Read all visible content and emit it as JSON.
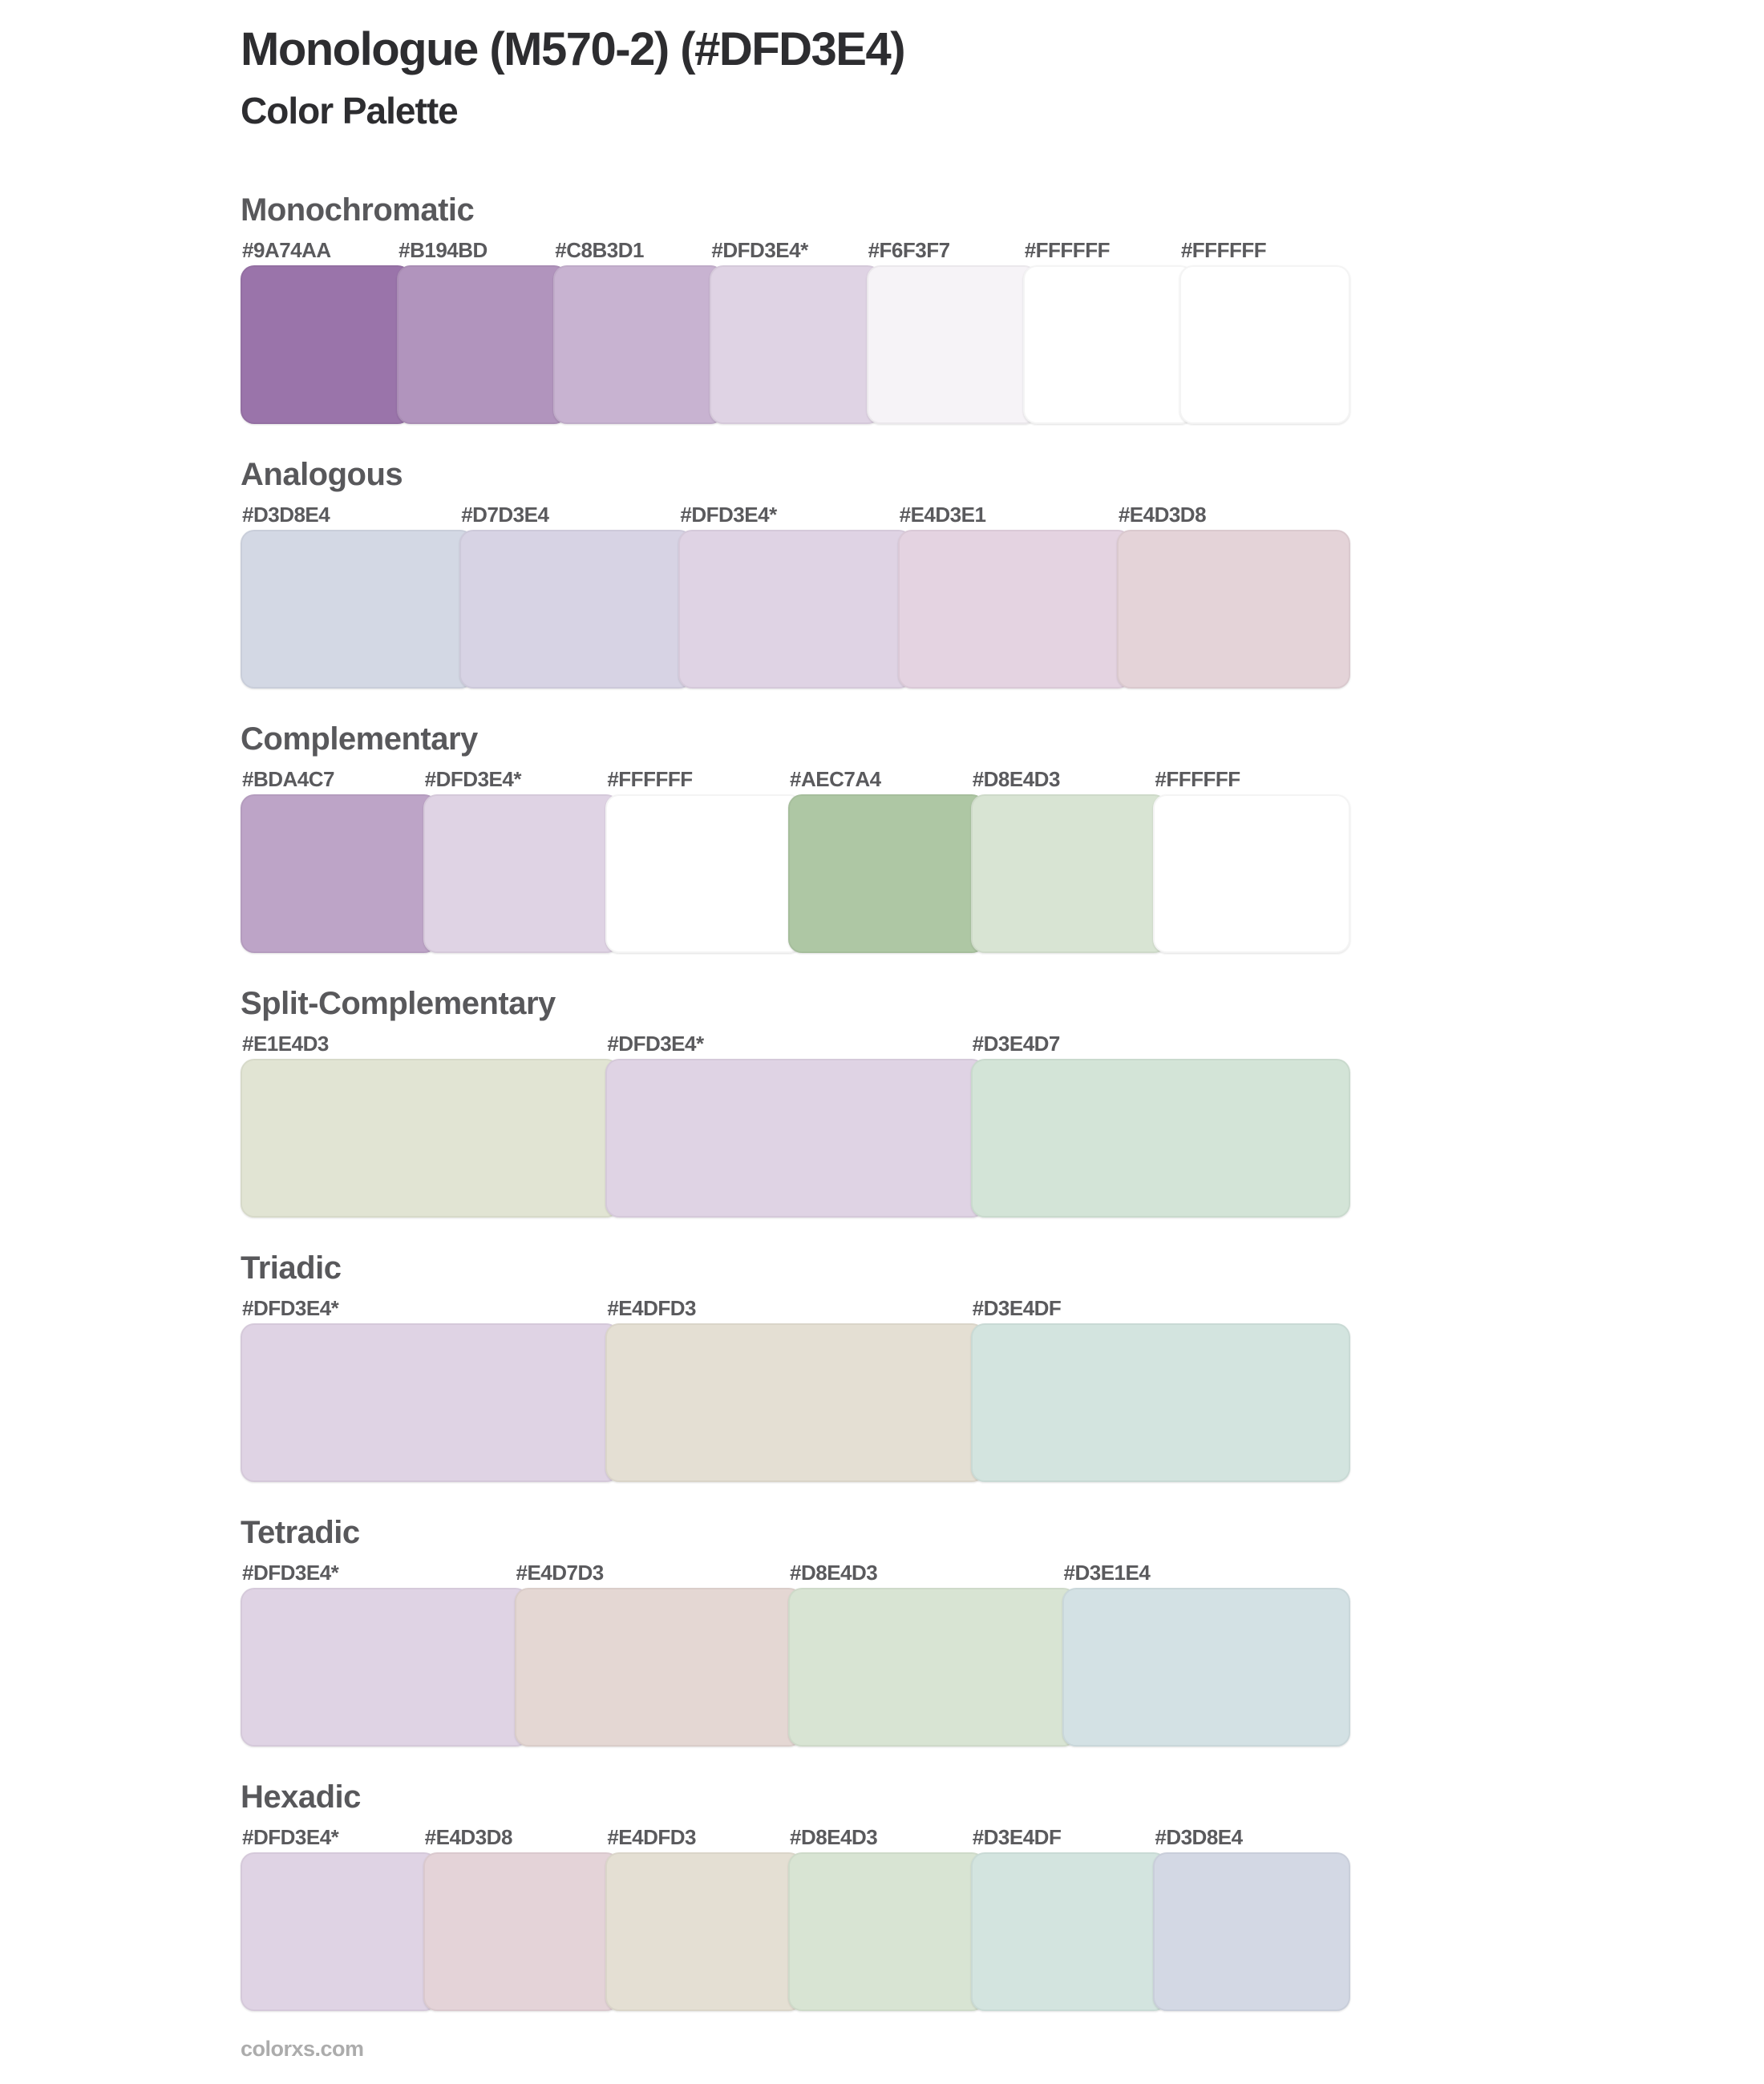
{
  "header": {
    "title": "Monologue (M570-2) (#DFD3E4)",
    "subtitle": "Color Palette",
    "base_color": "#DFD3E4"
  },
  "ui_colors": {
    "background": "#FFFFFF",
    "title_text": "#2D2D30",
    "heading_text": "#58585B",
    "label_text": "#5A5A5D",
    "footer_text": "#ACACAC"
  },
  "sections": [
    {
      "heading": "Monochromatic",
      "swatches": [
        {
          "label": "#9A74AA",
          "color": "#9A74AA"
        },
        {
          "label": "#B194BD",
          "color": "#B194BD"
        },
        {
          "label": "#C8B3D1",
          "color": "#C8B3D1"
        },
        {
          "label": "#DFD3E4*",
          "color": "#DFD3E4"
        },
        {
          "label": "#F6F3F7",
          "color": "#F6F3F7"
        },
        {
          "label": "#FFFFFF",
          "color": "#FFFFFF"
        },
        {
          "label": "#FFFFFF",
          "color": "#FFFFFF"
        }
      ]
    },
    {
      "heading": "Analogous",
      "swatches": [
        {
          "label": "#D3D8E4",
          "color": "#D3D8E4"
        },
        {
          "label": "#D7D3E4",
          "color": "#D7D3E4"
        },
        {
          "label": "#DFD3E4*",
          "color": "#DFD3E4"
        },
        {
          "label": "#E4D3E1",
          "color": "#E4D3E1"
        },
        {
          "label": "#E4D3D8",
          "color": "#E4D3D8"
        }
      ]
    },
    {
      "heading": "Complementary",
      "swatches": [
        {
          "label": "#BDA4C7",
          "color": "#BDA4C7"
        },
        {
          "label": "#DFD3E4*",
          "color": "#DFD3E4"
        },
        {
          "label": "#FFFFFF",
          "color": "#FFFFFF"
        },
        {
          "label": "#AEC7A4",
          "color": "#AEC7A4"
        },
        {
          "label": "#D8E4D3",
          "color": "#D8E4D3"
        },
        {
          "label": "#FFFFFF",
          "color": "#FFFFFF"
        }
      ]
    },
    {
      "heading": "Split-Complementary",
      "swatches": [
        {
          "label": "#E1E4D3",
          "color": "#E1E4D3"
        },
        {
          "label": "#DFD3E4*",
          "color": "#DFD3E4"
        },
        {
          "label": "#D3E4D7",
          "color": "#D3E4D7"
        }
      ]
    },
    {
      "heading": "Triadic",
      "swatches": [
        {
          "label": "#DFD3E4*",
          "color": "#DFD3E4"
        },
        {
          "label": "#E4DFD3",
          "color": "#E4DFD3"
        },
        {
          "label": "#D3E4DF",
          "color": "#D3E4DF"
        }
      ]
    },
    {
      "heading": "Tetradic",
      "swatches": [
        {
          "label": "#DFD3E4*",
          "color": "#DFD3E4"
        },
        {
          "label": "#E4D7D3",
          "color": "#E4D7D3"
        },
        {
          "label": "#D8E4D3",
          "color": "#D8E4D3"
        },
        {
          "label": "#D3E1E4",
          "color": "#D3E1E4"
        }
      ]
    },
    {
      "heading": "Hexadic",
      "swatches": [
        {
          "label": "#DFD3E4*",
          "color": "#DFD3E4"
        },
        {
          "label": "#E4D3D8",
          "color": "#E4D3D8"
        },
        {
          "label": "#E4DFD3",
          "color": "#E4DFD3"
        },
        {
          "label": "#D8E4D3",
          "color": "#D8E4D3"
        },
        {
          "label": "#D3E4DF",
          "color": "#D3E4DF"
        },
        {
          "label": "#D3D8E4",
          "color": "#D3D8E4"
        }
      ]
    }
  ],
  "footer": {
    "text": "colorxs.com"
  }
}
